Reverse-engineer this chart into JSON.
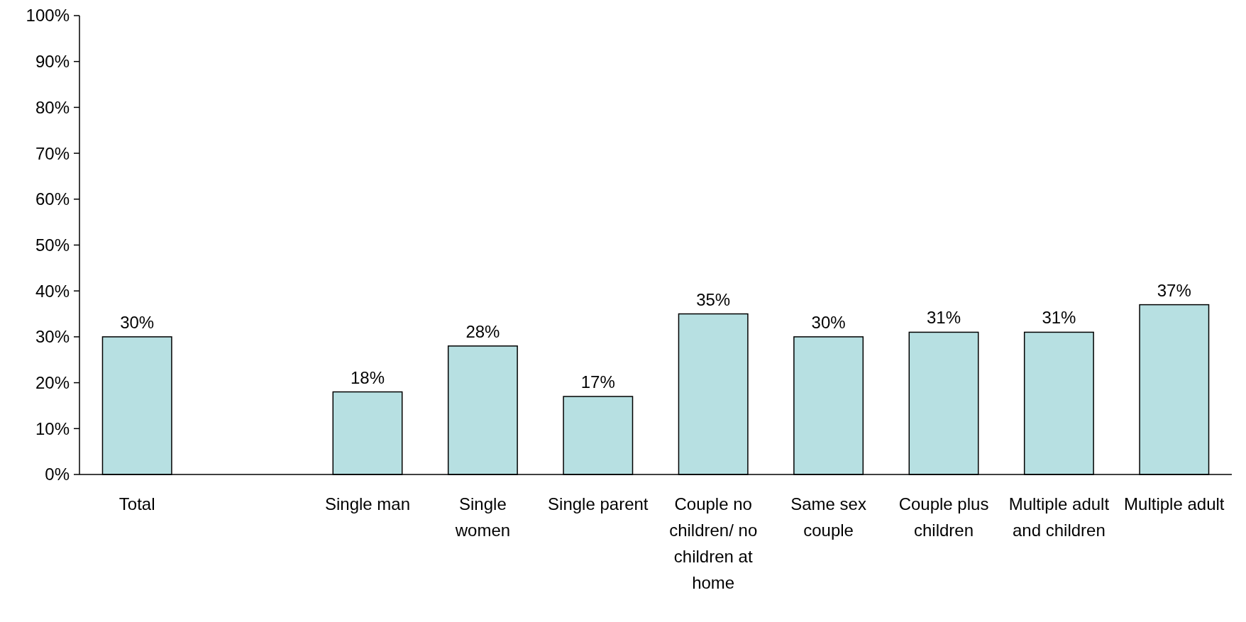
{
  "chart_data": {
    "type": "bar",
    "categories": [
      "Total",
      null,
      "Single man",
      "Single women",
      "Single parent",
      "Couple no children/ no children at home",
      "Same sex couple",
      "Couple plus children",
      "Multiple adult and children",
      "Multiple adult"
    ],
    "values": [
      30,
      null,
      18,
      28,
      17,
      35,
      30,
      31,
      31,
      37
    ],
    "value_labels": [
      "30%",
      null,
      "18%",
      "28%",
      "17%",
      "35%",
      "30%",
      "31%",
      "31%",
      "37%"
    ],
    "color": "#b7e0e2",
    "ylim": [
      0,
      100
    ],
    "yticks": [
      {
        "value": 0,
        "label": "0%"
      },
      {
        "value": 10,
        "label": "10%"
      },
      {
        "value": 20,
        "label": "20%"
      },
      {
        "value": 30,
        "label": "30%"
      },
      {
        "value": 40,
        "label": "40%"
      },
      {
        "value": 50,
        "label": "50%"
      },
      {
        "value": 60,
        "label": "60%"
      },
      {
        "value": 70,
        "label": "70%"
      },
      {
        "value": 80,
        "label": "80%"
      },
      {
        "value": 90,
        "label": "90%"
      },
      {
        "value": 100,
        "label": "100%"
      }
    ],
    "grid": false
  }
}
